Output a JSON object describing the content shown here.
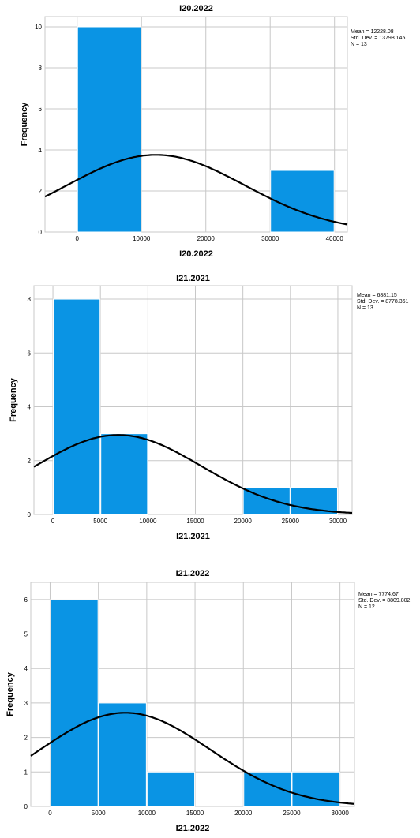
{
  "chart_data": [
    {
      "type": "bar",
      "title": "I20.2022",
      "xlabel": "I20.2022",
      "ylabel": "Frequency",
      "xlim": [
        -5000,
        42000
      ],
      "ylim": [
        0,
        10.5
      ],
      "xticks": [
        0,
        10000,
        20000,
        30000,
        40000
      ],
      "yticks": [
        0,
        2,
        4,
        6,
        8,
        10
      ],
      "bins": [
        {
          "start": 0,
          "end": 10000,
          "count": 10
        },
        {
          "start": 30000,
          "end": 40000,
          "count": 3
        }
      ],
      "normal_curve": {
        "mean": 12228.08,
        "sd": 13798.145,
        "n": 13,
        "bin_width": 10000
      },
      "stats": [
        "Mean = 12228.08",
        "Std. Dev. = 13798.145",
        "N = 13"
      ],
      "grid": true
    },
    {
      "type": "bar",
      "title": "I21.2021",
      "xlabel": "I21.2021",
      "ylabel": "Frequency",
      "xlim": [
        -2000,
        31500
      ],
      "ylim": [
        0,
        8.5
      ],
      "xticks": [
        0,
        5000,
        10000,
        15000,
        20000,
        25000,
        30000
      ],
      "yticks": [
        0,
        2,
        4,
        6,
        8
      ],
      "bins": [
        {
          "start": 0,
          "end": 5000,
          "count": 8
        },
        {
          "start": 5000,
          "end": 10000,
          "count": 3
        },
        {
          "start": 20000,
          "end": 25000,
          "count": 1
        },
        {
          "start": 25000,
          "end": 30000,
          "count": 1
        }
      ],
      "normal_curve": {
        "mean": 6881.15,
        "sd": 8778.361,
        "n": 13,
        "bin_width": 5000
      },
      "stats": [
        "Mean = 6881.15",
        "Std. Dev. = 8778.361",
        "N = 13"
      ],
      "grid": true
    },
    {
      "type": "bar",
      "title": "I21.2022",
      "xlabel": "I21.2022",
      "ylabel": "Frequency",
      "xlim": [
        -2000,
        31500
      ],
      "ylim": [
        0,
        6.5
      ],
      "xticks": [
        0,
        5000,
        10000,
        15000,
        20000,
        25000,
        30000
      ],
      "yticks": [
        0,
        1,
        2,
        3,
        4,
        5,
        6
      ],
      "bins": [
        {
          "start": 0,
          "end": 5000,
          "count": 6
        },
        {
          "start": 5000,
          "end": 10000,
          "count": 3
        },
        {
          "start": 10000,
          "end": 15000,
          "count": 1
        },
        {
          "start": 20000,
          "end": 25000,
          "count": 1
        },
        {
          "start": 25000,
          "end": 30000,
          "count": 1
        }
      ],
      "normal_curve": {
        "mean": 7774.67,
        "sd": 8809.802,
        "n": 12,
        "bin_width": 5000
      },
      "stats": [
        "Mean = 7774.67",
        "Std. Dev. = 8809.802",
        "N = 12"
      ],
      "grid": true
    }
  ]
}
